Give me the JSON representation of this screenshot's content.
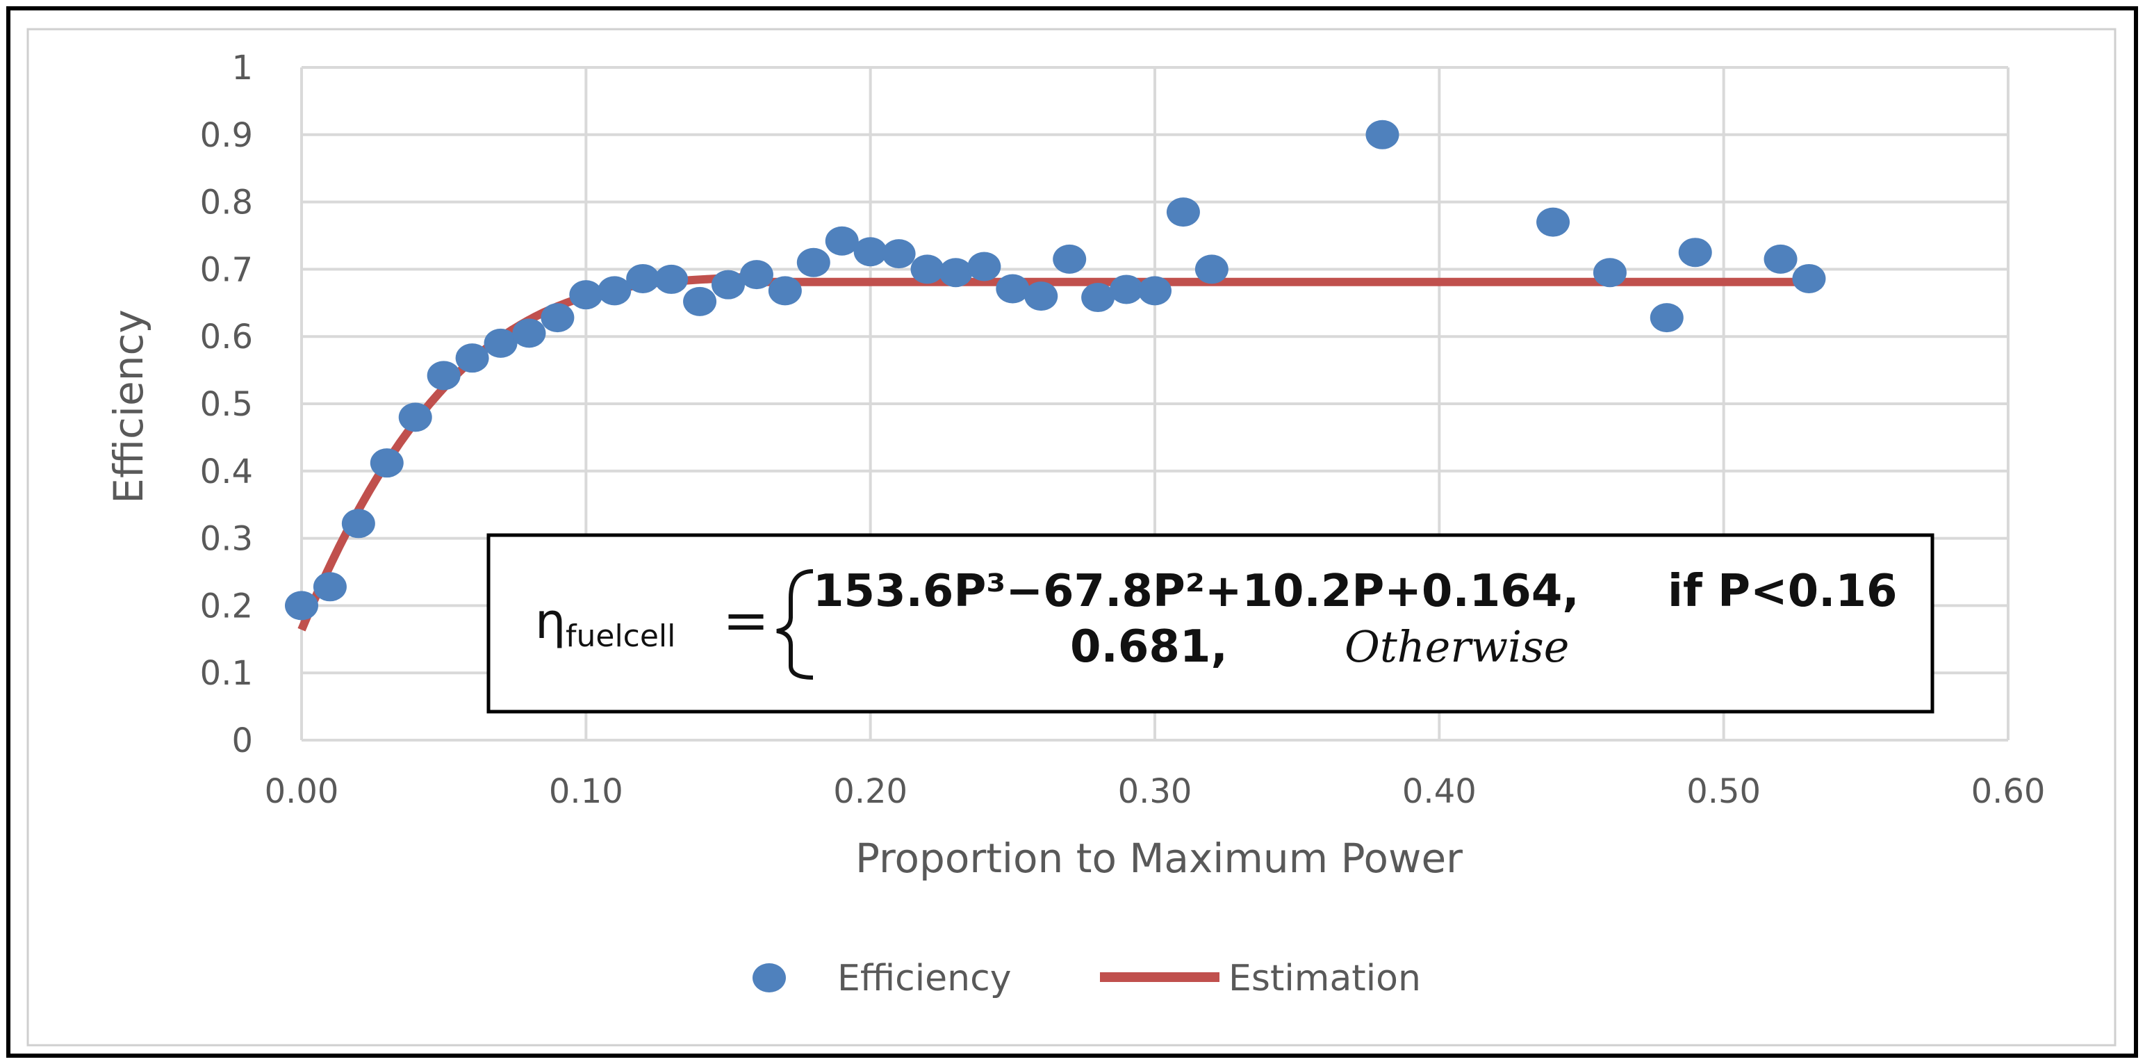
{
  "chart_data": {
    "type": "scatter",
    "title": "",
    "xlabel": "Proportion to Maximum Power",
    "ylabel": "Efficiency",
    "xlim": [
      0,
      0.6
    ],
    "ylim": [
      0,
      1
    ],
    "x_ticks": [
      "0.00",
      "0.10",
      "0.20",
      "0.30",
      "0.40",
      "0.50",
      "0.60"
    ],
    "y_ticks": [
      "0",
      "0.1",
      "0.2",
      "0.3",
      "0.4",
      "0.5",
      "0.6",
      "0.7",
      "0.8",
      "0.9",
      "1"
    ],
    "grid": true,
    "legend_position": "bottom",
    "series": [
      {
        "name": "Efficiency",
        "kind": "scatter",
        "color": "#4F81BD",
        "points": [
          [
            0.0,
            0.2
          ],
          [
            0.01,
            0.228
          ],
          [
            0.02,
            0.322
          ],
          [
            0.03,
            0.412
          ],
          [
            0.04,
            0.48
          ],
          [
            0.05,
            0.542
          ],
          [
            0.06,
            0.568
          ],
          [
            0.07,
            0.59
          ],
          [
            0.08,
            0.605
          ],
          [
            0.09,
            0.628
          ],
          [
            0.1,
            0.662
          ],
          [
            0.11,
            0.668
          ],
          [
            0.12,
            0.686
          ],
          [
            0.13,
            0.685
          ],
          [
            0.14,
            0.652
          ],
          [
            0.15,
            0.677
          ],
          [
            0.16,
            0.692
          ],
          [
            0.17,
            0.668
          ],
          [
            0.18,
            0.71
          ],
          [
            0.19,
            0.742
          ],
          [
            0.2,
            0.726
          ],
          [
            0.21,
            0.723
          ],
          [
            0.22,
            0.7
          ],
          [
            0.23,
            0.695
          ],
          [
            0.24,
            0.704
          ],
          [
            0.25,
            0.671
          ],
          [
            0.26,
            0.66
          ],
          [
            0.27,
            0.715
          ],
          [
            0.28,
            0.658
          ],
          [
            0.29,
            0.67
          ],
          [
            0.3,
            0.668
          ],
          [
            0.31,
            0.785
          ],
          [
            0.32,
            0.7
          ],
          [
            0.38,
            0.9
          ],
          [
            0.44,
            0.77
          ],
          [
            0.46,
            0.695
          ],
          [
            0.48,
            0.628
          ],
          [
            0.49,
            0.725
          ],
          [
            0.52,
            0.715
          ],
          [
            0.53,
            0.686
          ]
        ]
      },
      {
        "name": "Estimation",
        "kind": "line",
        "color": "#C0504D",
        "formula": "153.6P^3-67.8P^2+10.2P+0.164 if P<0.16 else 0.681",
        "x_start": 0.0,
        "x_break": 0.16,
        "x_end": 0.53,
        "constant": 0.681
      }
    ]
  },
  "equation": {
    "eta": "η",
    "subscript": "fuelcell",
    "equals": "=",
    "line1": "153.6P³−67.8P²+10.2P+0.164,",
    "cond1": "if P<0.16",
    "line2": "0.681,",
    "cond2": "Otherwise"
  },
  "legend": {
    "scatter_label": "Efficiency",
    "line_label": "Estimation"
  }
}
